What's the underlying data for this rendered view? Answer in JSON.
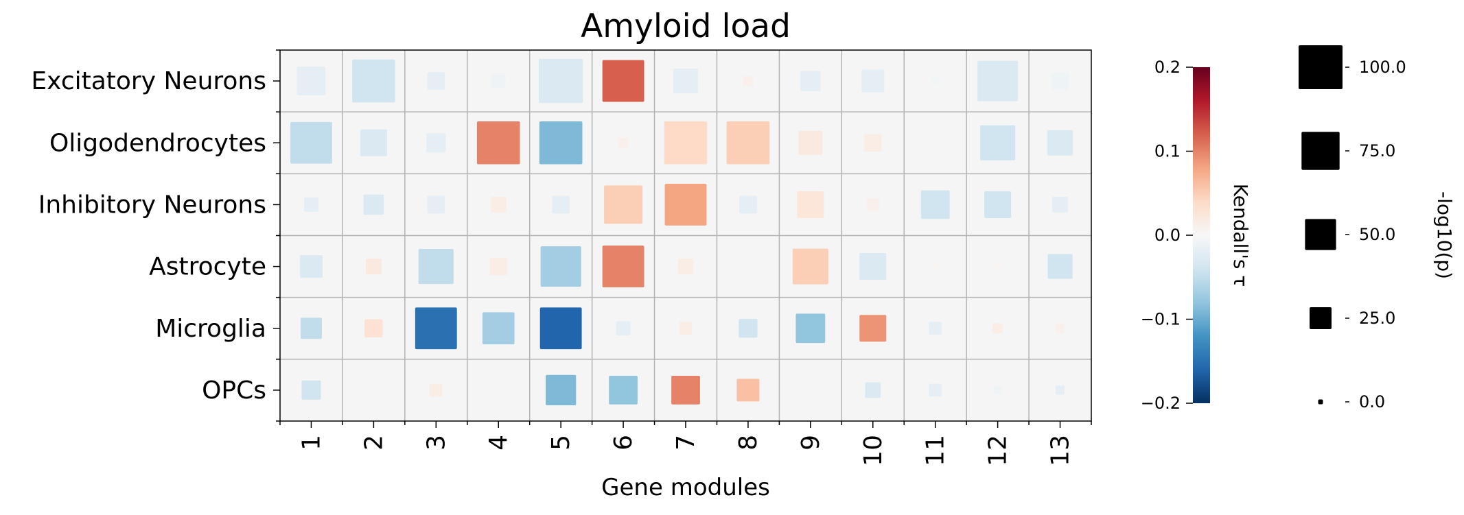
{
  "chart_data": {
    "type": "heatmap",
    "title": "Amyloid load",
    "xlabel": "Gene modules",
    "ylabel": "",
    "categories": [
      "1",
      "2",
      "3",
      "4",
      "5",
      "6",
      "7",
      "8",
      "9",
      "10",
      "11",
      "12",
      "13"
    ],
    "rows": [
      "Excitatory Neurons",
      "Oligodendrocytes",
      "Inhibitory Neurons",
      "Astrocyte",
      "Microglia",
      "OPCs"
    ],
    "color_metric": "Kendall's τ",
    "size_metric": "-log10(p)",
    "color_range": [
      -0.2,
      0.2
    ],
    "size_range": [
      0,
      100
    ],
    "colorbar_ticks": [
      "0.2",
      "0.1",
      "0.0",
      "−0.1",
      "−0.2"
    ],
    "size_legend_ticks": [
      "100.0",
      "75.0",
      "50.0",
      "25.0",
      "0.0"
    ],
    "size_legend_values": [
      100,
      75,
      50,
      25,
      0
    ],
    "colormap": "RdBu_r",
    "grid": true,
    "series": [
      {
        "name": "Excitatory Neurons",
        "tau": [
          -0.02,
          -0.04,
          -0.02,
          -0.01,
          -0.03,
          0.12,
          -0.02,
          0.01,
          -0.02,
          -0.02,
          -0.005,
          -0.03,
          -0.01
        ],
        "logp": [
          40,
          90,
          15,
          10,
          95,
          85,
          30,
          5,
          20,
          25,
          4,
          80,
          14
        ]
      },
      {
        "name": "Oligodendrocytes",
        "tau": [
          -0.05,
          -0.03,
          -0.02,
          0.1,
          -0.09,
          0.01,
          0.04,
          0.05,
          0.02,
          0.015,
          -0.003,
          -0.04,
          -0.03
        ],
        "logp": [
          85,
          35,
          18,
          90,
          90,
          5,
          90,
          90,
          28,
          15,
          2,
          60,
          32
        ]
      },
      {
        "name": "Inhibitory Neurons",
        "tau": [
          -0.02,
          -0.03,
          -0.02,
          0.015,
          -0.02,
          0.05,
          0.08,
          -0.02,
          0.025,
          0.01,
          -0.04,
          -0.04,
          -0.02
        ],
        "logp": [
          10,
          20,
          15,
          12,
          15,
          72,
          85,
          15,
          35,
          8,
          40,
          35,
          12
        ]
      },
      {
        "name": "Astrocyte",
        "tau": [
          -0.03,
          0.02,
          -0.05,
          0.015,
          -0.07,
          0.1,
          0.015,
          0.003,
          0.05,
          -0.03,
          0.005,
          0.005,
          -0.04
        ],
        "logp": [
          25,
          12,
          60,
          15,
          80,
          85,
          12,
          2,
          62,
          35,
          3,
          3,
          30
        ]
      },
      {
        "name": "Microglia",
        "tau": [
          -0.05,
          0.03,
          -0.15,
          -0.07,
          -0.16,
          -0.02,
          0.015,
          -0.04,
          -0.08,
          0.09,
          -0.02,
          0.015,
          0.01
        ],
        "logp": [
          22,
          16,
          85,
          50,
          85,
          10,
          8,
          17,
          42,
          35,
          8,
          5,
          4
        ]
      },
      {
        "name": "OPCs",
        "tau": [
          -0.04,
          -0.003,
          0.015,
          0,
          -0.09,
          -0.08,
          0.1,
          0.06,
          -0.002,
          -0.03,
          -0.02,
          -0.01,
          -0.02
        ],
        "logp": [
          18,
          1,
          8,
          0,
          45,
          40,
          40,
          25,
          1,
          12,
          8,
          3,
          4
        ]
      }
    ]
  }
}
